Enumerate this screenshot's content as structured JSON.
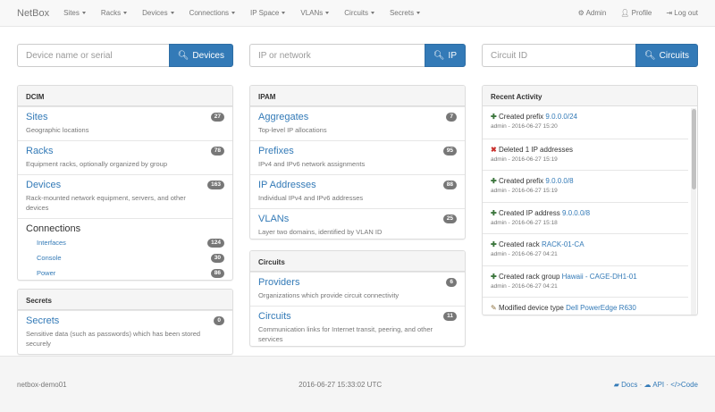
{
  "navbar": {
    "brand": "NetBox",
    "menus": [
      "Sites",
      "Racks",
      "Devices",
      "Connections",
      "IP Space",
      "VLANs",
      "Circuits",
      "Secrets"
    ],
    "right": [
      {
        "icon": "gear-icon",
        "label": "Admin"
      },
      {
        "icon": "user-icon",
        "label": "Profile"
      },
      {
        "icon": "logout-icon",
        "label": "Log out"
      }
    ]
  },
  "searches": [
    {
      "placeholder": "Device name or serial",
      "button": "Devices"
    },
    {
      "placeholder": "IP or network",
      "button": "IP"
    },
    {
      "placeholder": "Circuit ID",
      "button": "Circuits"
    }
  ],
  "dcim": {
    "title": "DCIM",
    "items": [
      {
        "label": "Sites",
        "desc": "Geographic locations",
        "count": "27"
      },
      {
        "label": "Racks",
        "desc": "Equipment racks, optionally organized by group",
        "count": "78"
      },
      {
        "label": "Devices",
        "desc": "Rack-mounted network equipment, servers, and other devices",
        "count": "163"
      }
    ],
    "connections": {
      "label": "Connections",
      "items": [
        {
          "label": "Interfaces",
          "count": "124"
        },
        {
          "label": "Console",
          "count": "30"
        },
        {
          "label": "Power",
          "count": "86"
        }
      ]
    }
  },
  "secrets": {
    "title": "Secrets",
    "items": [
      {
        "label": "Secrets",
        "desc": "Sensitive data (such as passwords) which has been stored securely",
        "count": "0"
      }
    ]
  },
  "ipam": {
    "title": "IPAM",
    "items": [
      {
        "label": "Aggregates",
        "desc": "Top-level IP allocations",
        "count": "7"
      },
      {
        "label": "Prefixes",
        "desc": "IPv4 and IPv6 network assignments",
        "count": "95"
      },
      {
        "label": "IP Addresses",
        "desc": "Individual IPv4 and IPv6 addresses",
        "count": "88"
      },
      {
        "label": "VLANs",
        "desc": "Layer two domains, identified by VLAN ID",
        "count": "25"
      }
    ]
  },
  "circuits": {
    "title": "Circuits",
    "items": [
      {
        "label": "Providers",
        "desc": "Organizations which provide circuit connectivity",
        "count": "6"
      },
      {
        "label": "Circuits",
        "desc": "Communication links for Internet transit, peering, and other services",
        "count": "11"
      }
    ]
  },
  "activity": {
    "title": "Recent Activity",
    "items": [
      {
        "icon": "plus-icon",
        "text": "Created prefix ",
        "link": "9.0.0.0/24",
        "meta": "admin - 2016-06-27 15:20"
      },
      {
        "icon": "x-icon",
        "text": "Deleted 1 IP addresses",
        "link": "",
        "meta": "admin - 2016-06-27 15:19"
      },
      {
        "icon": "plus-icon",
        "text": "Created prefix ",
        "link": "9.0.0.0/8",
        "meta": "admin - 2016-06-27 15:19"
      },
      {
        "icon": "plus-icon",
        "text": "Created IP address ",
        "link": "9.0.0.0/8",
        "meta": "admin - 2016-06-27 15:18"
      },
      {
        "icon": "plus-icon",
        "text": "Created rack ",
        "link": "RACK-01-CA",
        "meta": "admin - 2016-06-27 04:21"
      },
      {
        "icon": "plus-icon",
        "text": "Created rack group ",
        "link": "Hawaii - CAGE-DH1-01",
        "meta": "admin - 2016-06-27 04:21"
      },
      {
        "icon": "pencil-icon",
        "text": "Modified device type ",
        "link": "Dell PowerEdge R630",
        "meta": ""
      }
    ]
  },
  "footer": {
    "hostname": "netbox-demo01",
    "time": "2016-06-27 15:33:02 UTC",
    "docs": "Docs",
    "api": "API",
    "code": "Code",
    "sep": "·"
  },
  "colors": {
    "primary": "#337ab7",
    "badge": "#777777",
    "success": "#3c763d",
    "danger": "#c9302c"
  }
}
